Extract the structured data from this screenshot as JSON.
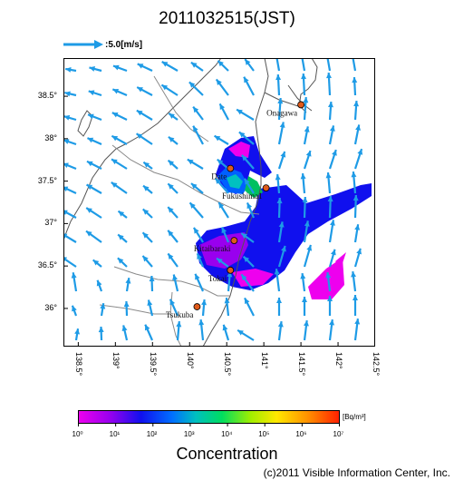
{
  "title": "2011032515(JST)",
  "scale": {
    "label": ":5.0[m/s]"
  },
  "map": {
    "lon_range": [
      138.3,
      142.5
    ],
    "lat_range": [
      35.55,
      38.95
    ],
    "lat_ticks": [
      "38.5°",
      "38°",
      "37.5°",
      "37°",
      "36.5°",
      "36°"
    ],
    "lat_tick_values": [
      38.5,
      38.0,
      37.5,
      37.0,
      36.5,
      36.0
    ],
    "lon_ticks": [
      "138.5°",
      "139°",
      "139.5°",
      "140°",
      "140.5°",
      "141°",
      "141.5°",
      "142°",
      "142.5°"
    ],
    "lon_tick_values": [
      138.5,
      139.0,
      139.5,
      140.0,
      140.5,
      141.0,
      141.5,
      142.0,
      142.5
    ],
    "stations": [
      {
        "name": "Onagawa",
        "lon": 141.5,
        "lat": 38.4,
        "color": "#e05a1a"
      },
      {
        "name": "Date",
        "lon": 140.55,
        "lat": 37.65,
        "color": "#e05a1a"
      },
      {
        "name": "Fukushima1",
        "lon": 141.03,
        "lat": 37.42,
        "color": "#e05a1a"
      },
      {
        "name": "Kitaibaraki",
        "lon": 140.6,
        "lat": 36.8,
        "color": "#e05a1a"
      },
      {
        "name": "Tokai",
        "lon": 140.55,
        "lat": 36.45,
        "color": "#e05a1a"
      },
      {
        "name": "Tsukuba",
        "lon": 140.1,
        "lat": 36.02,
        "color": "#e05a1a"
      }
    ]
  },
  "colorbar": {
    "ticks": [
      "10⁰",
      "10¹",
      "10²",
      "10³",
      "10⁴",
      "10⁵",
      "10⁶",
      "10⁷"
    ],
    "unit": "[Bq/m³]",
    "title": "Concentration",
    "colors": [
      "#ee00ee",
      "#9900ee",
      "#1010ee",
      "#0070ff",
      "#00c0c0",
      "#00dd60",
      "#a0ee00",
      "#ffe800",
      "#ff9000",
      "#ff2000"
    ]
  },
  "copyright": "(c)2011 Visible Information Center, Inc.",
  "colors": {
    "arrow": "#1e9be6",
    "frame": "#000000",
    "coast": "#8a8a8a"
  }
}
